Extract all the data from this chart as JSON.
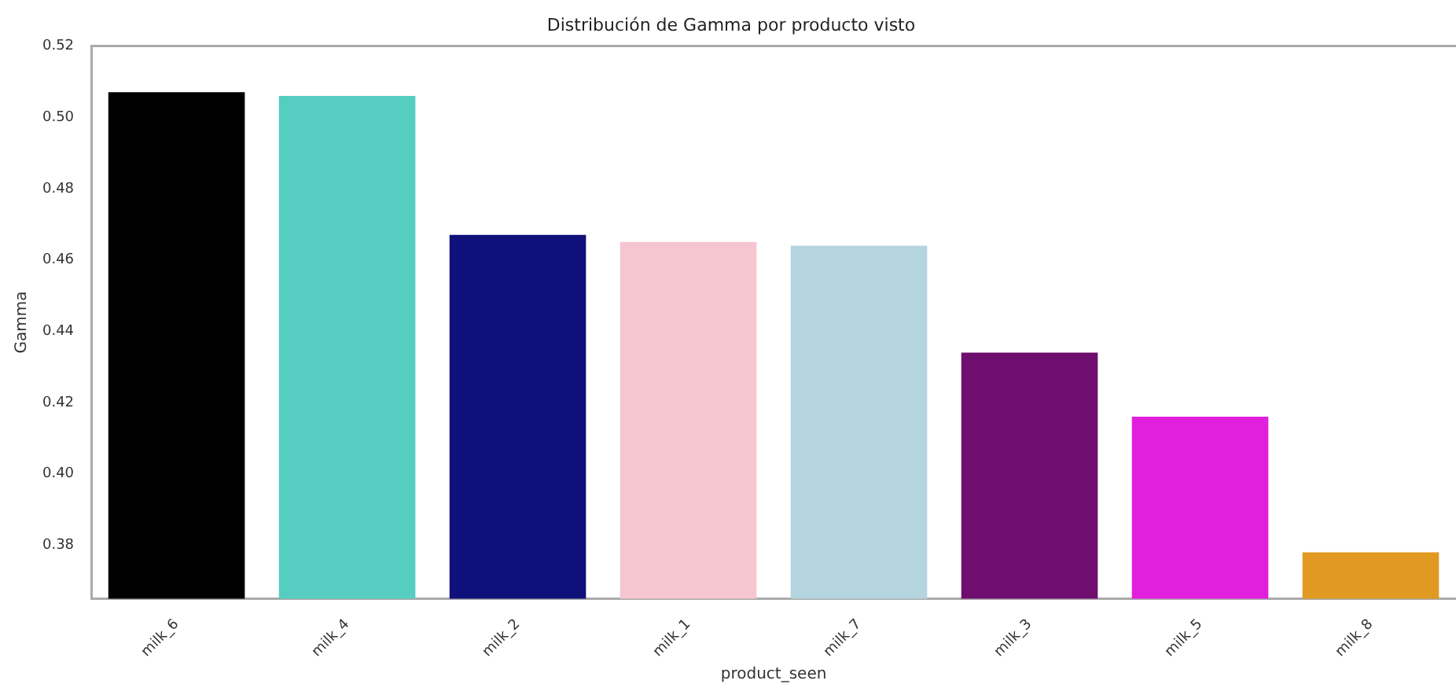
{
  "chart_data": {
    "type": "bar",
    "title": "Distribución de Gamma por producto visto",
    "xlabel": "product_seen",
    "ylabel": "Gamma",
    "categories": [
      "milk_6",
      "milk_4",
      "milk_2",
      "milk_1",
      "milk_7",
      "milk_3",
      "milk_5",
      "milk_8"
    ],
    "values": [
      0.507,
      0.506,
      0.467,
      0.465,
      0.464,
      0.434,
      0.416,
      0.378
    ],
    "colors": [
      "#000000",
      "#55cdc0",
      "#10107a",
      "#f6c6d0",
      "#b4d4df",
      "#6e0e6e",
      "#e020dd",
      "#e09a22"
    ],
    "ylim": [
      0.365,
      0.52
    ],
    "yticks": [
      0.38,
      {
        "value": 0.4,
        "label": "0.40"
      },
      0.42,
      0.44,
      0.46,
      0.48,
      {
        "value": 0.5,
        "label": "0.50"
      },
      0.52
    ],
    "grid": false,
    "legend": false
  }
}
